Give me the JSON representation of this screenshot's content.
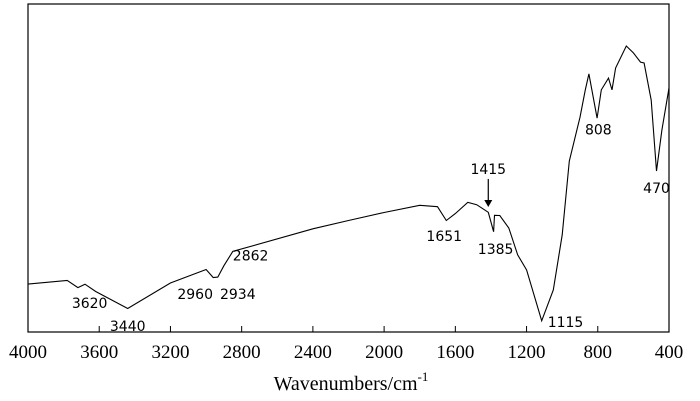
{
  "chart_data": {
    "type": "line",
    "title": "",
    "xlabel": "Wavenumbers/cm",
    "xlabel_superscript": "-1",
    "ylabel": "",
    "xlim": [
      4000,
      400
    ],
    "x_reversed": true,
    "ylim": [
      0,
      100
    ],
    "y_ticks_shown": false,
    "grid": false,
    "legend": "none",
    "line_color": "#000000",
    "x_ticks": [
      4000,
      3600,
      3200,
      2800,
      2400,
      2000,
      1600,
      1200,
      800,
      400
    ],
    "x_tick_labels": [
      "4000",
      "3600",
      "3200",
      "2800",
      "2400",
      "2000",
      "1600",
      "1200",
      "800",
      "400"
    ],
    "series": [
      {
        "x": [
          4000,
          3780,
          3720,
          3680,
          3620,
          3440,
          3200,
          3000,
          2960,
          2934,
          2900,
          2850,
          2400,
          2200,
          2000,
          1800,
          1700,
          1651,
          1600,
          1530,
          1480,
          1415,
          1385,
          1380,
          1350,
          1300,
          1250,
          1200,
          1115,
          1050,
          1000,
          960,
          900,
          870,
          850,
          804,
          780,
          740,
          720,
          700,
          640,
          600,
          560,
          540,
          500,
          470,
          440,
          400
        ],
        "y": [
          14.6,
          15.9,
          13.7,
          14.6,
          12.2,
          7.0,
          14.9,
          19.2,
          16.8,
          16.8,
          20.1,
          24.4,
          31.4,
          34.1,
          36.6,
          38.7,
          38.1,
          33.8,
          36.0,
          39.6,
          39.0,
          36.6,
          30.5,
          35.4,
          35.4,
          31.7,
          23.5,
          18.9,
          3.4,
          12.8,
          29.6,
          52.1,
          65.5,
          73.8,
          78.7,
          65.2,
          73.8,
          77.4,
          73.8,
          80.5,
          87.2,
          85.1,
          82.3,
          82.0,
          70.7,
          49.1,
          61.6,
          74.4
        ]
      }
    ],
    "annotations": [
      {
        "text": "3620",
        "x": 3620
      },
      {
        "text": "3440",
        "x": 3440
      },
      {
        "text": "2960",
        "x": 2960
      },
      {
        "text": "2934",
        "x": 2934
      },
      {
        "text": "2862",
        "x": 2862
      },
      {
        "text": "1651",
        "x": 1651
      },
      {
        "text": "1415",
        "x": 1415,
        "arrow": true
      },
      {
        "text": "1385",
        "x": 1385
      },
      {
        "text": "1115",
        "x": 1115
      },
      {
        "text": "808",
        "x": 808
      },
      {
        "text": "470",
        "x": 470
      }
    ]
  }
}
